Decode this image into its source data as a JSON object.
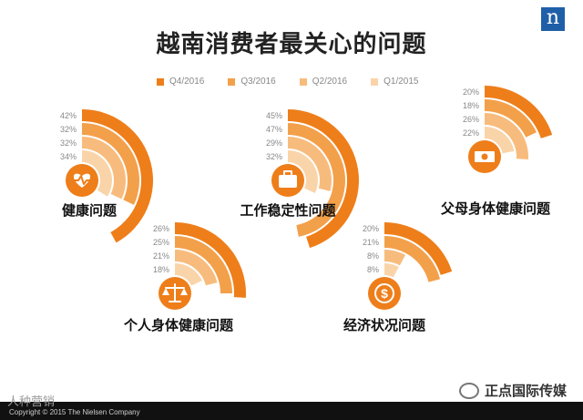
{
  "page": {
    "title": "越南消费者最关心的问题",
    "logo_glyph": "n",
    "footer_copyright": "Copyright © 2015 The Nielsen Company",
    "watermark_left": "人种营销",
    "watermark_right": "正点国际传媒"
  },
  "colors": {
    "q4_2016": "#ee7e1a",
    "q3_2016": "#f3a04b",
    "q2_2016": "#f7bc7d",
    "q1_2015": "#fad4a9",
    "icon_circle": "#ee7e1a"
  },
  "chart_data": {
    "type": "radial-bar",
    "title": "越南消费者最关心的问题",
    "max_value": 50,
    "sweep_degrees": 90,
    "legend": [
      "Q4/2016",
      "Q3/2016",
      "Q2/2016",
      "Q1/2015"
    ],
    "groups": [
      {
        "label": "健康问题",
        "icon": "heart-pulse-icon",
        "values": [
          42,
          32,
          32,
          34
        ],
        "value_labels": [
          "42%",
          "32%",
          "32%",
          "34%"
        ]
      },
      {
        "label": "工作稳定性问题",
        "icon": "briefcase-icon",
        "values": [
          45,
          47,
          29,
          32
        ],
        "value_labels": [
          "45%",
          "47%",
          "29%",
          "32%"
        ]
      },
      {
        "label": "父母身体健康问题",
        "icon": "money-icon",
        "values": [
          20,
          18,
          26,
          22
        ],
        "value_labels": [
          "20%",
          "18%",
          "26%",
          "22%"
        ]
      },
      {
        "label": "个人身体健康问题",
        "icon": "scale-icon",
        "values": [
          26,
          25,
          21,
          18
        ],
        "value_labels": [
          "26%",
          "25%",
          "21%",
          "18%"
        ]
      },
      {
        "label": "经济状况问题",
        "icon": "dollar-coin-icon",
        "values": [
          20,
          21,
          8,
          8
        ],
        "value_labels": [
          "20%",
          "21%",
          "8%",
          "8%"
        ]
      }
    ]
  }
}
